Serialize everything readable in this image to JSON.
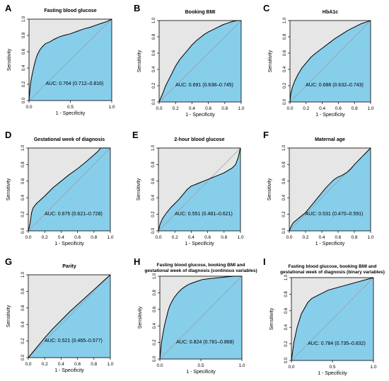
{
  "chart_data": [
    {
      "type": "area",
      "letter": "A",
      "title": "Fasting blood glucose",
      "xlabel": "1 - Specificity",
      "ylabel": "Sensitivity",
      "auc_label": "AUC: 0.764 (0.712–0.816)",
      "xticks": [
        "0.0",
        "0.5",
        "1.0"
      ],
      "xtick_values": [
        0,
        0.5,
        1
      ],
      "yticks": [
        "0.0",
        "0.2",
        "0.4",
        "0.6",
        "0.8",
        "1.0"
      ],
      "xlim": [
        0,
        1
      ],
      "ylim": [
        0,
        1
      ],
      "series": [
        {
          "x": [
            0,
            0.01,
            0.02,
            0.04,
            0.06,
            0.08,
            0.1,
            0.13,
            0.16,
            0.2,
            0.25,
            0.3,
            0.36,
            0.42,
            0.5,
            0.58,
            0.66,
            0.74,
            0.82,
            0.88,
            0.94,
            0.98,
            1.0
          ],
          "y": [
            0,
            0.12,
            0.22,
            0.33,
            0.42,
            0.5,
            0.56,
            0.62,
            0.66,
            0.7,
            0.72,
            0.75,
            0.78,
            0.8,
            0.82,
            0.85,
            0.88,
            0.9,
            0.93,
            0.95,
            0.97,
            0.99,
            1.0
          ]
        }
      ],
      "fill_color": "#87ceeb",
      "bg_color": "#e6e6e6"
    },
    {
      "type": "area",
      "letter": "B",
      "title": "Booking BMI",
      "xlabel": "1 - Specificity",
      "ylabel": "Sensitivity",
      "auc_label": "AUC: 0.691 (0.638–0.745)",
      "xticks": [
        "0.0",
        "0.2",
        "0.4",
        "0.6",
        "0.8",
        "1.0"
      ],
      "xtick_values": [
        0,
        0.2,
        0.4,
        0.6,
        0.8,
        1
      ],
      "yticks": [
        "0.0",
        "0.2",
        "0.4",
        "0.6",
        "0.8",
        "1.0"
      ],
      "xlim": [
        0,
        1
      ],
      "ylim": [
        0,
        1
      ],
      "series": [
        {
          "x": [
            0,
            0.02,
            0.05,
            0.08,
            0.12,
            0.16,
            0.2,
            0.25,
            0.3,
            0.35,
            0.4,
            0.45,
            0.5,
            0.55,
            0.6,
            0.66,
            0.72,
            0.78,
            0.84,
            0.9,
            0.95,
            1.0
          ],
          "y": [
            0,
            0.05,
            0.12,
            0.2,
            0.28,
            0.36,
            0.44,
            0.52,
            0.58,
            0.64,
            0.7,
            0.75,
            0.79,
            0.83,
            0.86,
            0.89,
            0.92,
            0.95,
            0.97,
            0.99,
            1.0,
            1.0
          ]
        }
      ],
      "fill_color": "#87ceeb",
      "bg_color": "#e6e6e6"
    },
    {
      "type": "area",
      "letter": "C",
      "title": "HbA1c",
      "xlabel": "1 - Specificity",
      "ylabel": "Sensitivity",
      "auc_label": "AUC: 0.688 (0.632–0.743)",
      "xticks": [
        "0.0",
        "0.2",
        "0.4",
        "0.6",
        "0.8",
        "1.0"
      ],
      "xtick_values": [
        0,
        0.2,
        0.4,
        0.6,
        0.8,
        1
      ],
      "yticks": [
        "0.0",
        "0.2",
        "0.4",
        "0.6",
        "0.8",
        "1.0"
      ],
      "xlim": [
        0,
        1
      ],
      "ylim": [
        0,
        1
      ],
      "series": [
        {
          "x": [
            0,
            0.01,
            0.03,
            0.06,
            0.1,
            0.15,
            0.2,
            0.26,
            0.32,
            0.4,
            0.48,
            0.56,
            0.64,
            0.72,
            0.8,
            0.88,
            0.94,
            1.0
          ],
          "y": [
            0,
            0.1,
            0.18,
            0.26,
            0.34,
            0.42,
            0.48,
            0.55,
            0.6,
            0.66,
            0.72,
            0.78,
            0.83,
            0.88,
            0.92,
            0.96,
            0.98,
            1.0
          ]
        }
      ],
      "fill_color": "#87ceeb",
      "bg_color": "#e6e6e6"
    },
    {
      "type": "area",
      "letter": "D",
      "title": "Gestational week of diagnosis",
      "xlabel": "1 - Specificity",
      "ylabel": "Sensitivity",
      "auc_label": "AUC: 0.675 (0.621–0.728)",
      "xticks": [
        "0.0",
        "0.2",
        "0.4",
        "0.6",
        "0.8",
        "1.0"
      ],
      "xtick_values": [
        0,
        0.2,
        0.4,
        0.6,
        0.8,
        1
      ],
      "yticks": [
        "0.0",
        "0.2",
        "0.4",
        "0.6",
        "0.8",
        "1.0"
      ],
      "xlim": [
        0,
        1
      ],
      "ylim": [
        0,
        1
      ],
      "series": [
        {
          "x": [
            0,
            0.02,
            0.04,
            0.06,
            0.1,
            0.2,
            0.3,
            0.4,
            0.5,
            0.6,
            0.7,
            0.78,
            0.85,
            0.88,
            1.0
          ],
          "y": [
            0,
            0.08,
            0.22,
            0.28,
            0.33,
            0.42,
            0.52,
            0.6,
            0.68,
            0.75,
            0.83,
            0.9,
            0.96,
            1.0,
            1.0
          ]
        }
      ],
      "fill_color": "#87ceeb",
      "bg_color": "#e6e6e6"
    },
    {
      "type": "area",
      "letter": "E",
      "title": "2-hour blood glucose",
      "xlabel": "1 - Specificity",
      "ylabel": "Sensitivity",
      "auc_label": "AUC: 0.551 (0.481–0.621)",
      "xticks": [
        "0.0",
        "0.2",
        "0.4",
        "0.6",
        "0.8",
        "1.0"
      ],
      "xtick_values": [
        0,
        0.2,
        0.4,
        0.6,
        0.8,
        1
      ],
      "yticks": [
        "0.0",
        "0.2",
        "0.4",
        "0.6",
        "0.8",
        "1.0"
      ],
      "xlim": [
        0,
        1
      ],
      "ylim": [
        0,
        1
      ],
      "series": [
        {
          "x": [
            0,
            0.02,
            0.05,
            0.1,
            0.15,
            0.2,
            0.25,
            0.3,
            0.35,
            0.4,
            0.45,
            0.5,
            0.55,
            0.6,
            0.65,
            0.7,
            0.75,
            0.8,
            0.85,
            0.9,
            0.94,
            0.97,
            0.99,
            1.0
          ],
          "y": [
            0,
            0.08,
            0.15,
            0.22,
            0.28,
            0.33,
            0.38,
            0.44,
            0.5,
            0.54,
            0.56,
            0.58,
            0.6,
            0.62,
            0.64,
            0.66,
            0.68,
            0.7,
            0.73,
            0.76,
            0.8,
            0.88,
            0.96,
            1.0
          ]
        }
      ],
      "fill_color": "#87ceeb",
      "bg_color": "#e6e6e6"
    },
    {
      "type": "area",
      "letter": "F",
      "title": "Maternal age",
      "xlabel": "1 - Specificity",
      "ylabel": "Sensitivity",
      "auc_label": "AUC: 0.531 (0.470–0.591)",
      "xticks": [
        "0.0",
        "0.2",
        "0.4",
        "0.6",
        "0.8",
        "1.0"
      ],
      "xtick_values": [
        0,
        0.2,
        0.4,
        0.6,
        0.8,
        1
      ],
      "yticks": [
        "0.0",
        "0.2",
        "0.4",
        "0.6",
        "0.8",
        "1.0"
      ],
      "xlim": [
        0,
        1
      ],
      "ylim": [
        0,
        1
      ],
      "series": [
        {
          "x": [
            0,
            0.02,
            0.05,
            0.1,
            0.15,
            0.2,
            0.25,
            0.3,
            0.35,
            0.4,
            0.45,
            0.5,
            0.55,
            0.6,
            0.65,
            0.7,
            0.75,
            0.8,
            0.85,
            0.9,
            0.95,
            1.0
          ],
          "y": [
            0,
            0.05,
            0.1,
            0.14,
            0.18,
            0.22,
            0.28,
            0.34,
            0.4,
            0.46,
            0.52,
            0.57,
            0.62,
            0.65,
            0.67,
            0.7,
            0.74,
            0.8,
            0.85,
            0.9,
            0.95,
            1.0
          ]
        }
      ],
      "fill_color": "#87ceeb",
      "bg_color": "#e6e6e6"
    },
    {
      "type": "area",
      "letter": "G",
      "title": "Parity",
      "xlabel": "1 - Specificity",
      "ylabel": "Sensitivity",
      "auc_label": "AUC: 0.521 (0.465–0.577)",
      "xticks": [
        "0.0",
        "0.2",
        "0.4",
        "0.6",
        "0.8",
        "1.0"
      ],
      "xtick_values": [
        0,
        0.2,
        0.4,
        0.6,
        0.8,
        1
      ],
      "yticks": [
        "0.0",
        "0.2",
        "0.4",
        "0.6",
        "0.8",
        "1.0"
      ],
      "xlim": [
        0,
        1
      ],
      "ylim": [
        0,
        1
      ],
      "series": [
        {
          "x": [
            0,
            0.1,
            0.2,
            0.3,
            0.4,
            0.5,
            0.6,
            0.7,
            0.8,
            0.9,
            1.0
          ],
          "y": [
            0,
            0.12,
            0.24,
            0.35,
            0.45,
            0.55,
            0.64,
            0.73,
            0.82,
            0.91,
            1.0
          ]
        }
      ],
      "fill_color": "#87ceeb",
      "bg_color": "#e6e6e6"
    },
    {
      "type": "area",
      "letter": "H",
      "title": "Fasting blood glucose, booking BMI and",
      "subtitle": "gestational week of diagnosis (continous variables)",
      "xlabel": "1 - Specificity",
      "ylabel": "Sensitivity",
      "auc_label": "AUC: 0.824 (0.781–0.868)",
      "xticks": [
        "0.0",
        "0.5",
        "1.0"
      ],
      "xtick_values": [
        0,
        0.5,
        1
      ],
      "yticks": [
        "0.0",
        "0.2",
        "0.4",
        "0.6",
        "0.8",
        "1.0"
      ],
      "xlim": [
        0,
        1
      ],
      "ylim": [
        0,
        1
      ],
      "series": [
        {
          "x": [
            0,
            0.01,
            0.02,
            0.04,
            0.06,
            0.08,
            0.1,
            0.12,
            0.15,
            0.18,
            0.22,
            0.26,
            0.3,
            0.35,
            0.4,
            0.46,
            0.52,
            0.6,
            0.7,
            0.8,
            0.9,
            1.0
          ],
          "y": [
            0,
            0.1,
            0.2,
            0.32,
            0.42,
            0.5,
            0.58,
            0.64,
            0.7,
            0.75,
            0.8,
            0.84,
            0.87,
            0.9,
            0.92,
            0.94,
            0.96,
            0.97,
            0.98,
            0.99,
            1.0,
            1.0
          ]
        }
      ],
      "fill_color": "#87ceeb",
      "bg_color": "#e6e6e6"
    },
    {
      "type": "area",
      "letter": "I",
      "title": "Fasting blood glucose, booking BMI and",
      "subtitle": "gestational week of diagnosis (binary variables)",
      "xlabel": "1 - Specificity",
      "ylabel": "Sensitivity",
      "auc_label": "AUC: 0.784 (0.735–0.832)",
      "xticks": [
        "0.0",
        "0.5",
        "1.0"
      ],
      "xtick_values": [
        0,
        0.5,
        1
      ],
      "yticks": [
        "0.0",
        "0.2",
        "0.4",
        "0.6",
        "0.8",
        "1.0"
      ],
      "xlim": [
        0,
        1
      ],
      "ylim": [
        0,
        1
      ],
      "series": [
        {
          "x": [
            0,
            0.03,
            0.07,
            0.12,
            0.2,
            0.25,
            0.45,
            1.0
          ],
          "y": [
            0,
            0.22,
            0.4,
            0.56,
            0.7,
            0.75,
            0.85,
            1.0
          ]
        }
      ],
      "fill_color": "#87ceeb",
      "bg_color": "#e6e6e6"
    }
  ]
}
